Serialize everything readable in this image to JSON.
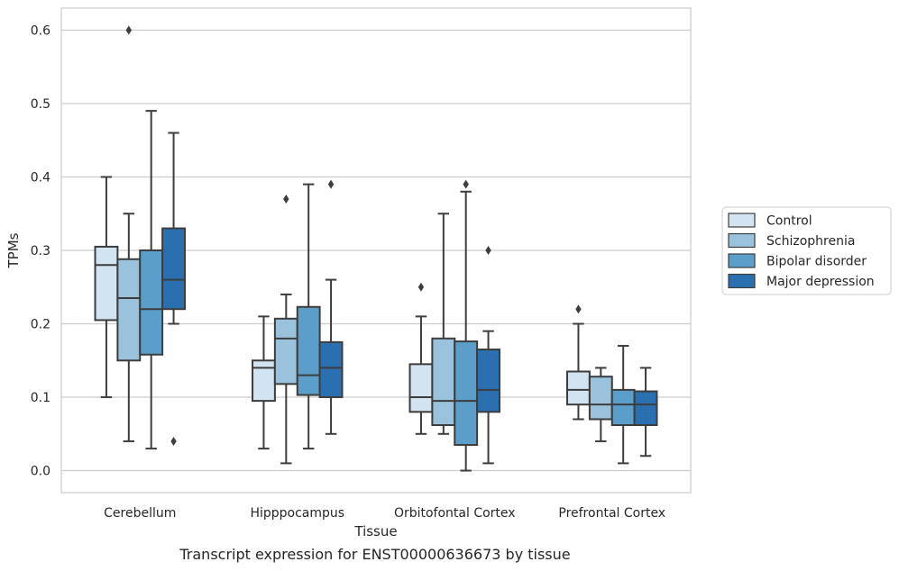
{
  "chart_data": {
    "type": "box",
    "categories": [
      "Cerebellum",
      "Hipppocampus",
      "Orbitofontal Cortex",
      "Prefrontal Cortex"
    ],
    "xlabel": "Tissue",
    "ylabel": "TPMs",
    "ylim": [
      -0.03,
      0.63
    ],
    "yticks": [
      "0.0",
      "0.1",
      "0.2",
      "0.3",
      "0.4",
      "0.5",
      "0.6"
    ],
    "grid": "horizontal",
    "legend_position": "right",
    "series": [
      {
        "name": "Control",
        "color": "#d2e3f2",
        "boxes": [
          {
            "whislo": 0.1,
            "q1": 0.205,
            "med": 0.28,
            "q3": 0.305,
            "whishi": 0.4,
            "fliers": []
          },
          {
            "whislo": 0.03,
            "q1": 0.095,
            "med": 0.14,
            "q3": 0.15,
            "whishi": 0.21,
            "fliers": []
          },
          {
            "whislo": 0.05,
            "q1": 0.08,
            "med": 0.1,
            "q3": 0.145,
            "whishi": 0.21,
            "fliers": [
              0.25
            ]
          },
          {
            "whislo": 0.07,
            "q1": 0.09,
            "med": 0.11,
            "q3": 0.135,
            "whishi": 0.2,
            "fliers": [
              0.22
            ]
          }
        ]
      },
      {
        "name": "Schizophrenia",
        "color": "#9ac2dc",
        "boxes": [
          {
            "whislo": 0.04,
            "q1": 0.15,
            "med": 0.235,
            "q3": 0.288,
            "whishi": 0.35,
            "fliers": [
              0.6
            ]
          },
          {
            "whislo": 0.01,
            "q1": 0.118,
            "med": 0.18,
            "q3": 0.207,
            "whishi": 0.24,
            "fliers": [
              0.37
            ]
          },
          {
            "whislo": 0.05,
            "q1": 0.062,
            "med": 0.095,
            "q3": 0.18,
            "whishi": 0.35,
            "fliers": []
          },
          {
            "whislo": 0.04,
            "q1": 0.07,
            "med": 0.09,
            "q3": 0.128,
            "whishi": 0.14,
            "fliers": []
          }
        ]
      },
      {
        "name": "Bipolar disorder",
        "color": "#5a9ec9",
        "boxes": [
          {
            "whislo": 0.03,
            "q1": 0.158,
            "med": 0.22,
            "q3": 0.3,
            "whishi": 0.49,
            "fliers": []
          },
          {
            "whislo": 0.03,
            "q1": 0.103,
            "med": 0.13,
            "q3": 0.223,
            "whishi": 0.39,
            "fliers": []
          },
          {
            "whislo": 0.0,
            "q1": 0.035,
            "med": 0.095,
            "q3": 0.176,
            "whishi": 0.38,
            "fliers": [
              0.39
            ]
          },
          {
            "whislo": 0.01,
            "q1": 0.062,
            "med": 0.09,
            "q3": 0.11,
            "whishi": 0.17,
            "fliers": []
          }
        ]
      },
      {
        "name": "Major depression",
        "color": "#2a70b0",
        "boxes": [
          {
            "whislo": 0.2,
            "q1": 0.22,
            "med": 0.26,
            "q3": 0.33,
            "whishi": 0.46,
            "fliers": [
              0.04
            ]
          },
          {
            "whislo": 0.05,
            "q1": 0.1,
            "med": 0.14,
            "q3": 0.175,
            "whishi": 0.26,
            "fliers": [
              0.39
            ]
          },
          {
            "whislo": 0.01,
            "q1": 0.08,
            "med": 0.11,
            "q3": 0.165,
            "whishi": 0.19,
            "fliers": [
              0.3
            ]
          },
          {
            "whislo": 0.02,
            "q1": 0.062,
            "med": 0.09,
            "q3": 0.108,
            "whishi": 0.14,
            "fliers": []
          }
        ]
      }
    ]
  },
  "caption": "Transcript expression for ENST00000636673 by tissue"
}
